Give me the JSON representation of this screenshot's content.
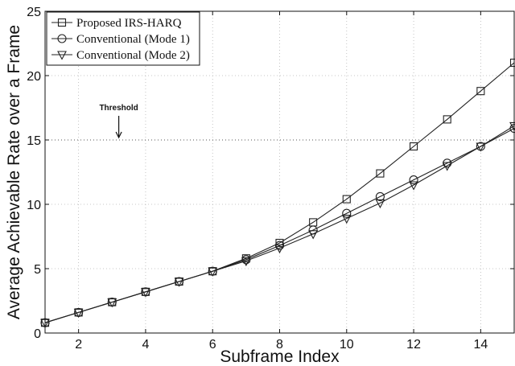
{
  "chart_data": {
    "type": "line",
    "title": "",
    "xlabel": "Subframe Index",
    "ylabel": "Average Achievable Rate over a Frame",
    "xlim": [
      1,
      15
    ],
    "ylim": [
      0,
      25
    ],
    "xticks": [
      2,
      4,
      6,
      8,
      10,
      12,
      14
    ],
    "yticks": [
      0,
      5,
      10,
      15,
      20,
      25
    ],
    "x": [
      1,
      2,
      3,
      4,
      5,
      6,
      7,
      8,
      9,
      10,
      11,
      12,
      13,
      14,
      15
    ],
    "series": [
      {
        "name": "Proposed IRS-HARQ",
        "marker": "square",
        "values": [
          0.8,
          1.6,
          2.4,
          3.2,
          4.0,
          4.8,
          5.8,
          7.0,
          8.6,
          10.4,
          12.4,
          14.5,
          16.6,
          18.8,
          21.0
        ]
      },
      {
        "name": "Conventional (Mode 1)",
        "marker": "circle",
        "values": [
          0.8,
          1.6,
          2.4,
          3.2,
          4.0,
          4.8,
          5.7,
          6.8,
          8.0,
          9.3,
          10.6,
          11.9,
          13.2,
          14.5,
          15.9
        ]
      },
      {
        "name": "Conventional (Mode 2)",
        "marker": "triangle-down",
        "values": [
          0.8,
          1.6,
          2.4,
          3.2,
          4.0,
          4.8,
          5.6,
          6.6,
          7.7,
          8.9,
          10.1,
          11.5,
          13.0,
          14.5,
          16.1
        ]
      }
    ],
    "threshold": {
      "label": "Threshold",
      "value": 15,
      "arrow_x": 3.2
    },
    "legend": "top-left",
    "grid": true,
    "line_color": "#222222"
  }
}
